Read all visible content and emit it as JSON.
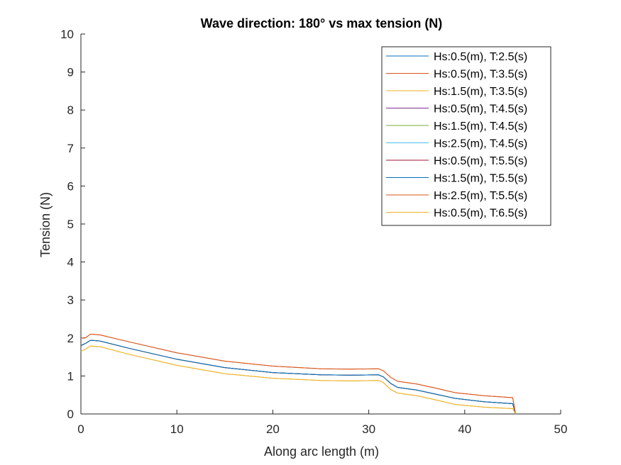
{
  "chart_data": {
    "type": "line",
    "title": "Wave direction: 180° vs max tension (N)",
    "xlabel": "Along arc length (m)",
    "ylabel": "Tension (N)",
    "xlim": [
      0,
      50
    ],
    "ylim": [
      0,
      10
    ],
    "xticks": [
      0,
      10,
      20,
      30,
      40,
      50
    ],
    "yticks": [
      0,
      1,
      2,
      3,
      4,
      5,
      6,
      7,
      8,
      9,
      10
    ],
    "grid": false,
    "legend_position": "top-right",
    "x": [
      0,
      0.5,
      1,
      2,
      5,
      10,
      15,
      20,
      25,
      28,
      31,
      31.5,
      32.3,
      33,
      35,
      37,
      39,
      42,
      45,
      45.3
    ],
    "series": [
      {
        "name": "Hs:0.5(m), T:2.5(s)",
        "color": "#0072BD",
        "values": [
          1.8,
          1.86,
          1.94,
          1.92,
          1.73,
          1.44,
          1.22,
          1.09,
          1.03,
          1.02,
          1.03,
          0.98,
          0.8,
          0.7,
          0.63,
          0.52,
          0.41,
          0.32,
          0.27,
          0.0
        ]
      },
      {
        "name": "Hs:0.5(m), T:3.5(s)",
        "color": "#D95319",
        "values": [
          1.99,
          2.01,
          2.1,
          2.08,
          1.9,
          1.61,
          1.39,
          1.26,
          1.19,
          1.18,
          1.19,
          1.14,
          0.96,
          0.86,
          0.79,
          0.68,
          0.56,
          0.48,
          0.43,
          0.0
        ]
      },
      {
        "name": "Hs:1.5(m), T:3.5(s)",
        "color": "#EDB120",
        "values": [
          1.65,
          1.71,
          1.79,
          1.77,
          1.57,
          1.28,
          1.06,
          0.94,
          0.88,
          0.87,
          0.88,
          0.83,
          0.64,
          0.55,
          0.48,
          0.37,
          0.25,
          0.18,
          0.14,
          0.0
        ]
      },
      {
        "name": "Hs:0.5(m), T:4.5(s)",
        "color": "#7E2F8E",
        "values": [
          1.8,
          1.86,
          1.94,
          1.92,
          1.73,
          1.44,
          1.22,
          1.09,
          1.03,
          1.02,
          1.03,
          0.98,
          0.8,
          0.7,
          0.63,
          0.52,
          0.41,
          0.32,
          0.27,
          0.0
        ]
      },
      {
        "name": "Hs:1.5(m), T:4.5(s)",
        "color": "#77AC30",
        "values": [
          1.8,
          1.86,
          1.94,
          1.92,
          1.73,
          1.44,
          1.22,
          1.09,
          1.03,
          1.02,
          1.03,
          0.98,
          0.8,
          0.7,
          0.63,
          0.52,
          0.41,
          0.32,
          0.27,
          0.0
        ]
      },
      {
        "name": "Hs:2.5(m), T:4.5(s)",
        "color": "#4DBEEE",
        "values": [
          1.8,
          1.86,
          1.94,
          1.92,
          1.73,
          1.44,
          1.22,
          1.09,
          1.03,
          1.02,
          1.03,
          0.98,
          0.8,
          0.7,
          0.63,
          0.52,
          0.41,
          0.32,
          0.27,
          0.0
        ]
      },
      {
        "name": "Hs:0.5(m), T:5.5(s)",
        "color": "#A2142F",
        "values": [
          1.8,
          1.86,
          1.94,
          1.92,
          1.73,
          1.44,
          1.22,
          1.09,
          1.03,
          1.02,
          1.03,
          0.98,
          0.8,
          0.7,
          0.63,
          0.52,
          0.41,
          0.32,
          0.27,
          0.0
        ]
      },
      {
        "name": "Hs:1.5(m), T:5.5(s)",
        "color": "#0072BD",
        "values": [
          1.8,
          1.86,
          1.94,
          1.92,
          1.73,
          1.44,
          1.22,
          1.09,
          1.03,
          1.02,
          1.03,
          0.98,
          0.8,
          0.7,
          0.63,
          0.52,
          0.41,
          0.32,
          0.27,
          0.0
        ]
      },
      {
        "name": "Hs:2.5(m), T:5.5(s)",
        "color": "#D95319",
        "values": [
          1.99,
          2.01,
          2.1,
          2.08,
          1.9,
          1.61,
          1.39,
          1.26,
          1.19,
          1.18,
          1.19,
          1.14,
          0.96,
          0.86,
          0.79,
          0.68,
          0.56,
          0.48,
          0.43,
          0.0
        ]
      },
      {
        "name": "Hs:0.5(m), T:6.5(s)",
        "color": "#EDB120",
        "values": [
          1.65,
          1.71,
          1.79,
          1.77,
          1.57,
          1.28,
          1.06,
          0.94,
          0.88,
          0.87,
          0.88,
          0.83,
          0.64,
          0.55,
          0.48,
          0.37,
          0.25,
          0.18,
          0.14,
          0.0
        ]
      }
    ]
  }
}
